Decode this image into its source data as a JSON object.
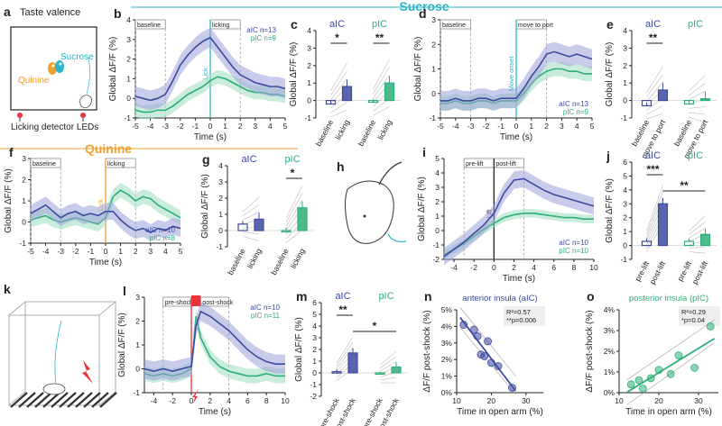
{
  "colors": {
    "aic": "#3d4aa0",
    "aic_fill": "#9aa2d8",
    "pic": "#2eaf78",
    "pic_fill": "#9fdcbf",
    "sucrose": "#2bb6c9",
    "quinine": "#f0a030",
    "shock": "#e8343a",
    "grey": "#888888"
  },
  "headers": {
    "sucrose": "Sucrose",
    "quinine": "Quinine"
  },
  "panel_a": {
    "letter": "a",
    "title": "Taste valence",
    "sucrose_label": "Sucrose",
    "quinine_label": "Quinine",
    "footer": "Licking detector LEDs"
  },
  "panel_h": {
    "letter": "h"
  },
  "panel_k": {
    "letter": "k"
  },
  "chart_data": [
    {
      "id": "b",
      "type": "line",
      "letter": "b",
      "ylabel": "Global ΔF/F (%)",
      "xlabel": "Time (s)",
      "xlim": [
        -5,
        5
      ],
      "ylim": [
        -1,
        4
      ],
      "xticks": [
        -5,
        -4,
        -3,
        -2,
        -1,
        0,
        1,
        2,
        3,
        4,
        5
      ],
      "yticks": [
        -1,
        0,
        1,
        2,
        3,
        4
      ],
      "epochs": [
        "baseline",
        "licking"
      ],
      "event_label": "Lick",
      "legend": [
        "aIC n=13",
        "pIC n=9"
      ],
      "series": [
        {
          "name": "aIC",
          "x": [
            -5,
            -4.5,
            -4,
            -3.5,
            -3,
            -2.5,
            -2,
            -1.5,
            -1,
            -0.5,
            0,
            0.5,
            1,
            1.5,
            2,
            2.5,
            3,
            3.5,
            4,
            4.5,
            5
          ],
          "y": [
            0.1,
            0.0,
            -0.1,
            0.0,
            0.2,
            0.9,
            1.7,
            2.2,
            2.6,
            2.9,
            3.1,
            2.6,
            2.1,
            1.6,
            1.2,
            1.0,
            0.8,
            0.7,
            0.6,
            0.6,
            0.5
          ],
          "err": 0.5
        },
        {
          "name": "pIC",
          "x": [
            -5,
            -4.5,
            -4,
            -3.5,
            -3,
            -2.5,
            -2,
            -1.5,
            -1,
            -0.5,
            0,
            0.5,
            1,
            1.5,
            2,
            2.5,
            3,
            3.5,
            4,
            4.5,
            5
          ],
          "y": [
            -0.6,
            -0.7,
            -0.7,
            -0.6,
            -0.6,
            -0.4,
            -0.1,
            0.2,
            0.4,
            0.6,
            0.9,
            1.1,
            1.0,
            0.8,
            0.6,
            0.4,
            0.3,
            0.3,
            0.2,
            0.2,
            0.1
          ],
          "err": 0.35
        }
      ]
    },
    {
      "id": "c",
      "type": "bar",
      "letter": "c",
      "ylabel": "Global ΔF/F (%)",
      "ylim": [
        -1,
        4
      ],
      "yticks": [
        -1,
        0,
        1,
        2,
        3,
        4
      ],
      "groups": [
        {
          "name": "aIC",
          "categories": [
            "baseline",
            "licking"
          ],
          "values": [
            -0.2,
            0.8
          ],
          "sig": "*"
        },
        {
          "name": "pIC",
          "categories": [
            "baseline",
            "licking"
          ],
          "values": [
            -0.1,
            1.0
          ],
          "sig": "**"
        }
      ]
    },
    {
      "id": "d",
      "type": "line",
      "letter": "d",
      "ylabel": "Global ΔF/F (%)",
      "xlabel": "Time (s)",
      "xlim": [
        -5,
        5
      ],
      "ylim": [
        -1,
        3
      ],
      "xticks": [
        -5,
        -4,
        -3,
        -2,
        -1,
        0,
        1,
        2,
        3,
        4,
        5
      ],
      "yticks": [
        -1,
        0,
        1,
        2,
        3
      ],
      "epochs": [
        "baseline",
        "move to port"
      ],
      "event_label": "Move onset",
      "legend": [
        "aIC n=13",
        "pIC n=9"
      ],
      "series": [
        {
          "name": "aIC",
          "x": [
            -5,
            -4.5,
            -4,
            -3.5,
            -3,
            -2.5,
            -2,
            -1.5,
            -1,
            -0.5,
            0,
            0.5,
            1,
            1.5,
            2,
            2.5,
            3,
            3.5,
            4,
            4.5,
            5
          ],
          "y": [
            -0.3,
            -0.3,
            -0.2,
            -0.3,
            -0.3,
            -0.2,
            -0.2,
            -0.3,
            -0.2,
            -0.2,
            -0.2,
            0.2,
            0.7,
            1.1,
            1.6,
            1.7,
            1.6,
            1.5,
            1.6,
            1.5,
            1.4
          ],
          "err": 0.4
        },
        {
          "name": "pIC",
          "x": [
            -5,
            -4.5,
            -4,
            -3.5,
            -3,
            -2.5,
            -2,
            -1.5,
            -1,
            -0.5,
            0,
            0.5,
            1,
            1.5,
            2,
            2.5,
            3,
            3.5,
            4,
            4.5,
            5
          ],
          "y": [
            -0.4,
            -0.4,
            -0.3,
            -0.4,
            -0.4,
            -0.3,
            -0.3,
            -0.4,
            -0.3,
            -0.3,
            -0.3,
            0.0,
            0.4,
            0.7,
            0.9,
            1.0,
            1.0,
            0.9,
            0.9,
            0.8,
            0.8
          ],
          "err": 0.3
        }
      ]
    },
    {
      "id": "e",
      "type": "bar",
      "letter": "e",
      "ylabel": "Global ΔF/F (%)",
      "ylim": [
        -1,
        4
      ],
      "yticks": [
        -1,
        0,
        1,
        2,
        3,
        4
      ],
      "groups": [
        {
          "name": "aIC",
          "categories": [
            "baseline",
            "move to port"
          ],
          "values": [
            -0.3,
            0.6
          ],
          "sig": "**"
        },
        {
          "name": "pIC",
          "categories": [
            "baseline",
            "move to port"
          ],
          "values": [
            -0.2,
            0.1
          ],
          "sig": ""
        }
      ]
    },
    {
      "id": "f",
      "type": "line",
      "letter": "f",
      "ylabel": "Global ΔF/F (%)",
      "xlabel": "Time (s)",
      "xlim": [
        -5,
        5
      ],
      "ylim": [
        -1,
        3
      ],
      "xticks": [
        -5,
        -4,
        -3,
        -2,
        -1,
        0,
        1,
        2,
        3,
        4,
        5
      ],
      "yticks": [
        -1,
        0,
        1,
        2,
        3
      ],
      "epochs": [
        "baseline",
        "licking"
      ],
      "event_label": "Lick",
      "legend": [
        "aIC n=10",
        "pIC n=8"
      ],
      "series": [
        {
          "name": "aIC",
          "x": [
            -5,
            -4.5,
            -4,
            -3.5,
            -3,
            -2.5,
            -2,
            -1.5,
            -1,
            -0.5,
            0,
            0.5,
            1,
            1.5,
            2,
            2.5,
            3,
            3.5,
            4,
            4.5,
            5
          ],
          "y": [
            0.4,
            0.6,
            0.8,
            0.5,
            0.2,
            0.4,
            0.5,
            0.3,
            0.4,
            0.3,
            0.5,
            0.5,
            0.1,
            -0.2,
            -0.4,
            -0.3,
            -0.5,
            -0.3,
            -0.4,
            -0.2,
            -0.3
          ],
          "err": 0.4
        },
        {
          "name": "pIC",
          "x": [
            -5,
            -4.5,
            -4,
            -3.5,
            -3,
            -2.5,
            -2,
            -1.5,
            -1,
            -0.5,
            0,
            0.5,
            1,
            1.5,
            2,
            2.5,
            3,
            3.5,
            4,
            4.5,
            5
          ],
          "y": [
            0.1,
            0.2,
            0.3,
            0.1,
            0.0,
            0.1,
            0.2,
            0.1,
            0.0,
            -0.1,
            0.2,
            1.2,
            1.5,
            1.3,
            1.0,
            1.2,
            1.1,
            0.8,
            0.6,
            0.4,
            0.2
          ],
          "err": 0.35
        }
      ]
    },
    {
      "id": "g",
      "type": "bar",
      "letter": "g",
      "ylabel": "Global ΔF/F (%)",
      "ylim": [
        -1,
        4
      ],
      "yticks": [
        -1,
        0,
        1,
        2,
        3,
        4
      ],
      "groups": [
        {
          "name": "aIC",
          "categories": [
            "baseline",
            "licking"
          ],
          "values": [
            0.4,
            0.7
          ],
          "sig": ""
        },
        {
          "name": "pIC",
          "categories": [
            "baseline",
            "licking"
          ],
          "values": [
            0.0,
            1.4
          ],
          "sig": "*"
        }
      ]
    },
    {
      "id": "i",
      "type": "line",
      "letter": "i",
      "ylabel": "Global ΔF/F (%)",
      "xlabel": "Time (s)",
      "xlim": [
        -5,
        10
      ],
      "ylim": [
        -2,
        5
      ],
      "xticks": [
        -4,
        -2,
        0,
        2,
        4,
        6,
        8,
        10
      ],
      "yticks": [
        -2,
        -1,
        0,
        1,
        2,
        3,
        4,
        5
      ],
      "epochs": [
        "pre-lift",
        "post-lift"
      ],
      "event_label": "Lift",
      "legend": [
        "aIC n=10",
        "pIC n=10"
      ],
      "series": [
        {
          "name": "aIC",
          "x": [
            -5,
            -4,
            -3,
            -2,
            -1,
            0,
            1,
            2,
            3,
            4,
            5,
            6,
            7,
            8,
            9,
            10
          ],
          "y": [
            -1.8,
            -1.3,
            -0.8,
            -0.2,
            0.4,
            1.2,
            2.6,
            3.5,
            3.6,
            3.2,
            2.8,
            2.5,
            2.3,
            2.1,
            1.9,
            1.7
          ],
          "err": 0.6
        },
        {
          "name": "pIC",
          "x": [
            -5,
            -4,
            -3,
            -2,
            -1,
            0,
            1,
            2,
            3,
            4,
            5,
            6,
            7,
            8,
            9,
            10
          ],
          "y": [
            -1.7,
            -1.3,
            -0.9,
            -0.4,
            0.1,
            0.5,
            0.9,
            1.1,
            1.2,
            1.2,
            1.1,
            1.0,
            0.9,
            0.9,
            0.8,
            0.8
          ],
          "err": 0.3
        }
      ]
    },
    {
      "id": "j",
      "type": "bar",
      "letter": "j",
      "ylabel": "Global ΔF/F (%)",
      "ylim": [
        -1,
        6
      ],
      "yticks": [
        -1,
        0,
        1,
        2,
        3,
        4,
        5,
        6
      ],
      "groups": [
        {
          "name": "aIC",
          "categories": [
            "pre-lift",
            "post-lift"
          ],
          "values": [
            0.3,
            3.0
          ],
          "sig": "***"
        },
        {
          "name": "pIC",
          "categories": [
            "pre-lift",
            "post-lift"
          ],
          "values": [
            0.3,
            0.8
          ],
          "sig": ""
        }
      ],
      "cross_sig": "**"
    },
    {
      "id": "l",
      "type": "line",
      "letter": "l",
      "ylabel": "Global ΔF/F (%)",
      "xlabel": "Time (s)",
      "xlim": [
        -5,
        10
      ],
      "ylim": [
        -1,
        3
      ],
      "xticks": [
        -4,
        -2,
        0,
        2,
        4,
        6,
        8,
        10
      ],
      "yticks": [
        -1,
        0,
        1,
        2,
        3
      ],
      "epochs": [
        "pre-shock",
        "post-shock"
      ],
      "event_label": "",
      "legend": [
        "aIC n=10",
        "pIC n=11"
      ],
      "series": [
        {
          "name": "aIC",
          "x": [
            -5,
            -4,
            -3,
            -2,
            -1,
            0,
            0.5,
            1,
            2,
            3,
            4,
            5,
            6,
            7,
            8,
            9,
            10
          ],
          "y": [
            0.0,
            -0.1,
            0.0,
            -0.1,
            0.0,
            0.1,
            1.8,
            2.4,
            2.2,
            1.9,
            1.6,
            1.2,
            0.8,
            0.5,
            0.3,
            0.2,
            0.2
          ],
          "err": 0.4
        },
        {
          "name": "pIC",
          "x": [
            -5,
            -4,
            -3,
            -2,
            -1,
            0,
            0.5,
            1,
            2,
            3,
            4,
            5,
            6,
            7,
            8,
            9,
            10
          ],
          "y": [
            -0.2,
            -0.3,
            -0.2,
            -0.3,
            -0.2,
            0.0,
            2.2,
            1.3,
            0.5,
            0.1,
            -0.1,
            -0.2,
            -0.3,
            -0.3,
            -0.2,
            -0.3,
            -0.3
          ],
          "err": 0.3
        }
      ]
    },
    {
      "id": "m",
      "type": "bar",
      "letter": "m",
      "ylabel": "Global ΔF/F (%)",
      "ylim": [
        -2,
        6
      ],
      "yticks": [
        -2,
        -1,
        0,
        1,
        2,
        3,
        4,
        5,
        6
      ],
      "groups": [
        {
          "name": "aIC",
          "categories": [
            "pre-shock",
            "post-shock"
          ],
          "values": [
            0.1,
            1.7
          ],
          "sig": "**"
        },
        {
          "name": "pIC",
          "categories": [
            "pre-shock",
            "post-shock"
          ],
          "values": [
            -0.1,
            0.5
          ],
          "sig": ""
        }
      ],
      "cross_sig": "*"
    },
    {
      "id": "n",
      "type": "scatter",
      "letter": "n",
      "title": "anterior insula (aIC)",
      "ylabel": "ΔF/F post-shock (%)",
      "xlabel": "Time in open arm (%)",
      "xlim": [
        10,
        35
      ],
      "ylim": [
        0,
        5
      ],
      "xticks": [
        10,
        20,
        30
      ],
      "yticks": [
        0,
        1,
        2,
        3,
        4,
        5
      ],
      "stats": [
        "R²=0.57",
        "**p=0.006"
      ],
      "x": [
        12,
        15,
        16,
        17,
        18,
        19,
        20,
        22,
        26
      ],
      "y": [
        4.1,
        3.8,
        3.4,
        2.3,
        2.2,
        3.1,
        1.8,
        1.6,
        0.3
      ]
    },
    {
      "id": "o",
      "type": "scatter",
      "letter": "o",
      "title": "posterior insula (pIC)",
      "ylabel": "ΔF/F post-shock (%)",
      "xlabel": "Time in open arm (%)",
      "xlim": [
        10,
        35
      ],
      "ylim": [
        0,
        4
      ],
      "xticks": [
        10,
        20,
        30
      ],
      "yticks": [
        0,
        1,
        2,
        3,
        4
      ],
      "stats": [
        "R²=0.29",
        "*p=0.04"
      ],
      "x": [
        13,
        15,
        16,
        18,
        20,
        23,
        25,
        29,
        33
      ],
      "y": [
        0.4,
        0.6,
        0.2,
        0.7,
        1.1,
        0.9,
        1.8,
        1.2,
        3.2
      ]
    }
  ]
}
